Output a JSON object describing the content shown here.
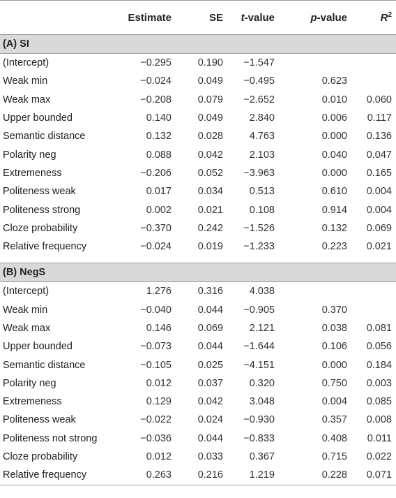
{
  "header": {
    "col0": "",
    "estimate": "Estimate",
    "se": "SE",
    "t_italic": "t",
    "t_rest": "-value",
    "p_italic": "p",
    "p_rest": "-value",
    "r_base": "R",
    "r_sup": "2"
  },
  "sections": [
    {
      "title": "(A) SI",
      "rows": [
        [
          "(Intercept)",
          "−0.295",
          "0.190",
          "−1.547",
          "",
          ""
        ],
        [
          "Weak min",
          "−0.024",
          "0.049",
          "−0.495",
          "0.623",
          ""
        ],
        [
          "Weak max",
          "−0.208",
          "0.079",
          "−2.652",
          "0.010",
          "0.060"
        ],
        [
          "Upper bounded",
          "0.140",
          "0.049",
          "2.840",
          "0.006",
          "0.117"
        ],
        [
          "Semantic distance",
          "0.132",
          "0.028",
          "4.763",
          "0.000",
          "0.136"
        ],
        [
          "Polarity neg",
          "0.088",
          "0.042",
          "2.103",
          "0.040",
          "0.047"
        ],
        [
          "Extremeness",
          "−0.206",
          "0.052",
          "−3.963",
          "0.000",
          "0.165"
        ],
        [
          "Politeness weak",
          "0.017",
          "0.034",
          "0.513",
          "0.610",
          "0.004"
        ],
        [
          "Politeness strong",
          "0.002",
          "0.021",
          "0.108",
          "0.914",
          "0.004"
        ],
        [
          "Cloze probability",
          "−0.370",
          "0.242",
          "−1.526",
          "0.132",
          "0.069"
        ],
        [
          "Relative frequency",
          "−0.024",
          "0.019",
          "−1.233",
          "0.223",
          "0.021"
        ]
      ]
    },
    {
      "title": "(B) NegS",
      "rows": [
        [
          "(Intercept)",
          "1.276",
          "0.316",
          "4.038",
          "",
          ""
        ],
        [
          "Weak min",
          "−0.040",
          "0.044",
          "−0.905",
          "0.370",
          ""
        ],
        [
          "Weak max",
          "0.146",
          "0.069",
          "2.121",
          "0.038",
          "0.081"
        ],
        [
          "Upper bounded",
          "−0.073",
          "0.044",
          "−1.644",
          "0.106",
          "0.056"
        ],
        [
          "Semantic distance",
          "−0.105",
          "0.025",
          "−4.151",
          "0.000",
          "0.184"
        ],
        [
          "Polarity neg",
          "0.012",
          "0.037",
          "0.320",
          "0.750",
          "0.003"
        ],
        [
          "Extremeness",
          "0.129",
          "0.042",
          "3.048",
          "0.004",
          "0.085"
        ],
        [
          "Politeness weak",
          "−0.022",
          "0.024",
          "−0.930",
          "0.357",
          "0.008"
        ],
        [
          "Politeness not strong",
          "−0.036",
          "0.044",
          "−0.833",
          "0.408",
          "0.011"
        ],
        [
          "Cloze probability",
          "0.012",
          "0.033",
          "0.367",
          "0.715",
          "0.022"
        ],
        [
          "Relative frequency",
          "0.263",
          "0.216",
          "1.219",
          "0.228",
          "0.071"
        ]
      ]
    }
  ]
}
